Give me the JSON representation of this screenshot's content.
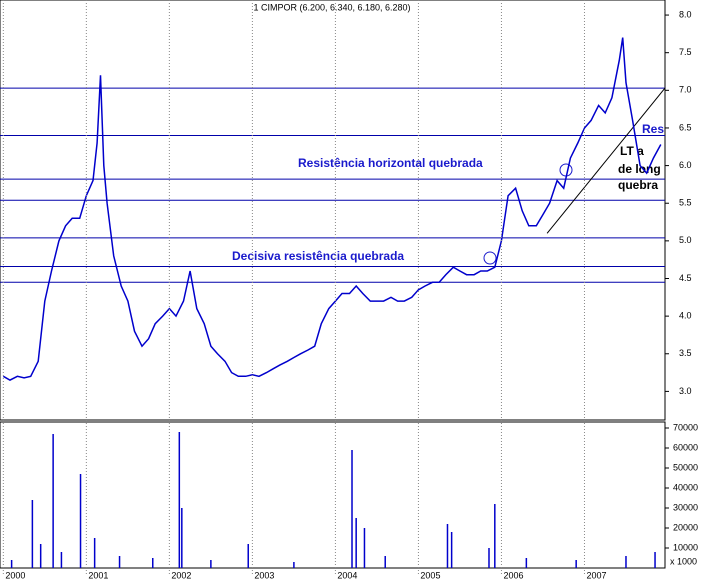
{
  "chart_data": [
    {
      "type": "line",
      "title": "1 CIMPOR (6.200, 6.340, 6.180, 6.280)",
      "color": "#0000cc",
      "xlim": [
        1999.96,
        2007.97
      ],
      "ylim": [
        2.62,
        8.2
      ],
      "yticks": [
        {
          "value": 3,
          "label": "3.0"
        },
        3.5,
        {
          "value": 4,
          "label": "4.0"
        },
        4.5,
        {
          "value": 5,
          "label": "5.0"
        },
        5.5,
        {
          "value": 6,
          "label": "6.0"
        },
        6.5,
        {
          "value": 7,
          "label": "7.0"
        },
        7.5,
        {
          "value": 8,
          "label": "8.0"
        }
      ],
      "x": [
        2000.0,
        2000.08,
        2000.17,
        2000.25,
        2000.33,
        2000.42,
        2000.5,
        2000.58,
        2000.67,
        2000.75,
        2000.83,
        2000.92,
        2001.0,
        2001.08,
        2001.13,
        2001.17,
        2001.21,
        2001.25,
        2001.33,
        2001.42,
        2001.5,
        2001.58,
        2001.67,
        2001.75,
        2001.83,
        2001.92,
        2002.0,
        2002.08,
        2002.17,
        2002.25,
        2002.33,
        2002.42,
        2002.5,
        2002.58,
        2002.67,
        2002.75,
        2002.83,
        2002.92,
        2003.0,
        2003.08,
        2003.17,
        2003.25,
        2003.33,
        2003.42,
        2003.5,
        2003.58,
        2003.67,
        2003.75,
        2003.83,
        2003.92,
        2004.0,
        2004.08,
        2004.17,
        2004.25,
        2004.33,
        2004.42,
        2004.5,
        2004.58,
        2004.67,
        2004.75,
        2004.83,
        2004.92,
        2005.0,
        2005.08,
        2005.17,
        2005.25,
        2005.33,
        2005.42,
        2005.5,
        2005.58,
        2005.67,
        2005.75,
        2005.83,
        2005.92,
        2006.0,
        2006.08,
        2006.17,
        2006.25,
        2006.33,
        2006.42,
        2006.5,
        2006.58,
        2006.67,
        2006.75,
        2006.83,
        2006.92,
        2007.0,
        2007.08,
        2007.17,
        2007.25,
        2007.33,
        2007.42,
        2007.46,
        2007.5,
        2007.58,
        2007.67,
        2007.75,
        2007.83,
        2007.92
      ],
      "values": [
        3.2,
        3.15,
        3.2,
        3.18,
        3.2,
        3.4,
        4.2,
        4.6,
        5.0,
        5.2,
        5.3,
        5.3,
        5.6,
        5.8,
        6.3,
        7.2,
        6.0,
        5.5,
        4.8,
        4.4,
        4.2,
        3.8,
        3.6,
        3.7,
        3.9,
        4.0,
        4.1,
        4.0,
        4.2,
        4.6,
        4.1,
        3.9,
        3.6,
        3.5,
        3.4,
        3.25,
        3.2,
        3.2,
        3.22,
        3.2,
        3.25,
        3.3,
        3.35,
        3.4,
        3.45,
        3.5,
        3.55,
        3.6,
        3.9,
        4.1,
        4.2,
        4.3,
        4.3,
        4.4,
        4.3,
        4.2,
        4.2,
        4.2,
        4.25,
        4.2,
        4.2,
        4.25,
        4.35,
        4.4,
        4.45,
        4.45,
        4.55,
        4.65,
        4.6,
        4.55,
        4.55,
        4.6,
        4.6,
        4.65,
        5.0,
        5.6,
        5.7,
        5.4,
        5.2,
        5.2,
        5.35,
        5.5,
        5.8,
        5.7,
        6.1,
        6.3,
        6.5,
        6.6,
        6.8,
        6.7,
        6.9,
        7.4,
        7.7,
        7.1,
        6.6,
        6.0,
        5.9,
        6.1,
        6.28
      ],
      "levels": [
        7.03,
        6.4,
        5.82,
        5.54,
        5.04,
        4.66,
        4.45
      ],
      "trendline": {
        "x": [
          2006.55,
          2007.97
        ],
        "values": [
          5.1,
          7.03
        ]
      },
      "annotations": [
        "Resistência horizontal quebrada",
        "Decisiva resistência quebrada",
        "Res",
        "LT a",
        "de long",
        "quebra"
      ]
    },
    {
      "type": "bar",
      "color": "#0000cc",
      "xlim": [
        1999.96,
        2007.97
      ],
      "ylim": [
        0,
        73000
      ],
      "yticks": [
        10000,
        20000,
        30000,
        40000,
        50000,
        60000,
        70000
      ],
      "xticks": [
        2000,
        2001,
        2002,
        2003,
        2004,
        2005,
        2006,
        2007
      ],
      "y_label": "x 1000",
      "x": [
        2000.1,
        2000.35,
        2000.45,
        2000.6,
        2000.7,
        2000.93,
        2001.1,
        2001.4,
        2001.8,
        2002.12,
        2002.15,
        2002.5,
        2002.95,
        2003.5,
        2004.2,
        2004.25,
        2004.35,
        2004.6,
        2005.35,
        2005.4,
        2005.85,
        2005.92,
        2006.3,
        2006.9,
        2007.5,
        2007.85
      ],
      "values": [
        4000,
        34000,
        12000,
        67000,
        8000,
        47000,
        15000,
        6000,
        5000,
        68000,
        30000,
        4000,
        12000,
        3000,
        59000,
        25000,
        20000,
        6000,
        22000,
        18000,
        10000,
        32000,
        5000,
        4000,
        6000,
        8000
      ]
    }
  ]
}
